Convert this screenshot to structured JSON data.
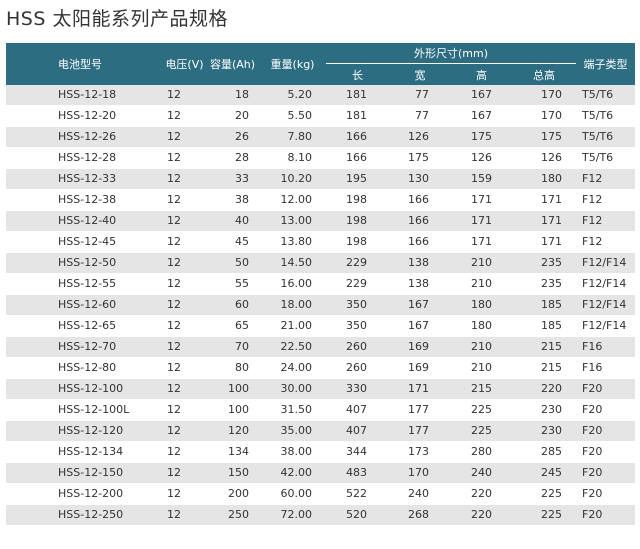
{
  "title": "HSS 太阳能系列产品规格",
  "headers": {
    "model": "电池型号",
    "voltage": "电压(V)",
    "capacity": "容量(Ah)",
    "weight": "重量(kg)",
    "dimensions": "外形尺寸(mm)",
    "length": "长",
    "width": "宽",
    "height": "高",
    "total_height": "总高",
    "terminal": "端子类型"
  },
  "rows": [
    {
      "model": "HSS-12-18",
      "voltage": "12",
      "capacity": "18",
      "weight": "5.20",
      "length": "181",
      "width": "77",
      "height": "167",
      "total_height": "170",
      "terminal": "T5/T6"
    },
    {
      "model": "HSS-12-20",
      "voltage": "12",
      "capacity": "20",
      "weight": "5.50",
      "length": "181",
      "width": "77",
      "height": "167",
      "total_height": "170",
      "terminal": "T5/T6"
    },
    {
      "model": "HSS-12-26",
      "voltage": "12",
      "capacity": "26",
      "weight": "7.80",
      "length": "166",
      "width": "126",
      "height": "175",
      "total_height": "175",
      "terminal": "T5/T6"
    },
    {
      "model": "HSS-12-28",
      "voltage": "12",
      "capacity": "28",
      "weight": "8.10",
      "length": "166",
      "width": "175",
      "height": "126",
      "total_height": "126",
      "terminal": "T5/T6"
    },
    {
      "model": "HSS-12-33",
      "voltage": "12",
      "capacity": "33",
      "weight": "10.20",
      "length": "195",
      "width": "130",
      "height": "159",
      "total_height": "180",
      "terminal": "F12"
    },
    {
      "model": "HSS-12-38",
      "voltage": "12",
      "capacity": "38",
      "weight": "12.00",
      "length": "198",
      "width": "166",
      "height": "171",
      "total_height": "171",
      "terminal": "F12"
    },
    {
      "model": "HSS-12-40",
      "voltage": "12",
      "capacity": "40",
      "weight": "13.00",
      "length": "198",
      "width": "166",
      "height": "171",
      "total_height": "171",
      "terminal": "F12"
    },
    {
      "model": "HSS-12-45",
      "voltage": "12",
      "capacity": "45",
      "weight": "13.80",
      "length": "198",
      "width": "166",
      "height": "171",
      "total_height": "171",
      "terminal": "F12"
    },
    {
      "model": "HSS-12-50",
      "voltage": "12",
      "capacity": "50",
      "weight": "14.50",
      "length": "229",
      "width": "138",
      "height": "210",
      "total_height": "235",
      "terminal": "F12/F14"
    },
    {
      "model": "HSS-12-55",
      "voltage": "12",
      "capacity": "55",
      "weight": "16.00",
      "length": "229",
      "width": "138",
      "height": "210",
      "total_height": "235",
      "terminal": "F12/F14"
    },
    {
      "model": "HSS-12-60",
      "voltage": "12",
      "capacity": "60",
      "weight": "18.00",
      "length": "350",
      "width": "167",
      "height": "180",
      "total_height": "185",
      "terminal": "F12/F14"
    },
    {
      "model": "HSS-12-65",
      "voltage": "12",
      "capacity": "65",
      "weight": "21.00",
      "length": "350",
      "width": "167",
      "height": "180",
      "total_height": "185",
      "terminal": "F12/F14"
    },
    {
      "model": "HSS-12-70",
      "voltage": "12",
      "capacity": "70",
      "weight": "22.50",
      "length": "260",
      "width": "169",
      "height": "210",
      "total_height": "215",
      "terminal": "F16"
    },
    {
      "model": "HSS-12-80",
      "voltage": "12",
      "capacity": "80",
      "weight": "24.00",
      "length": "260",
      "width": "169",
      "height": "210",
      "total_height": "215",
      "terminal": "F16"
    },
    {
      "model": "HSS-12-100",
      "voltage": "12",
      "capacity": "100",
      "weight": "30.00",
      "length": "330",
      "width": "171",
      "height": "215",
      "total_height": "220",
      "terminal": "F20"
    },
    {
      "model": "HSS-12-100L",
      "voltage": "12",
      "capacity": "100",
      "weight": "31.50",
      "length": "407",
      "width": "177",
      "height": "225",
      "total_height": "230",
      "terminal": "F20"
    },
    {
      "model": "HSS-12-120",
      "voltage": "12",
      "capacity": "120",
      "weight": "35.00",
      "length": "407",
      "width": "177",
      "height": "225",
      "total_height": "230",
      "terminal": "F20"
    },
    {
      "model": "HSS-12-134",
      "voltage": "12",
      "capacity": "134",
      "weight": "38.00",
      "length": "344",
      "width": "173",
      "height": "280",
      "total_height": "285",
      "terminal": "F20"
    },
    {
      "model": "HSS-12-150",
      "voltage": "12",
      "capacity": "150",
      "weight": "42.00",
      "length": "483",
      "width": "170",
      "height": "240",
      "total_height": "245",
      "terminal": "F20"
    },
    {
      "model": "HSS-12-200",
      "voltage": "12",
      "capacity": "200",
      "weight": "60.00",
      "length": "522",
      "width": "240",
      "height": "220",
      "total_height": "225",
      "terminal": "F20"
    },
    {
      "model": "HSS-12-250",
      "voltage": "12",
      "capacity": "250",
      "weight": "72.00",
      "length": "520",
      "width": "268",
      "height": "220",
      "total_height": "225",
      "terminal": "F20"
    }
  ]
}
